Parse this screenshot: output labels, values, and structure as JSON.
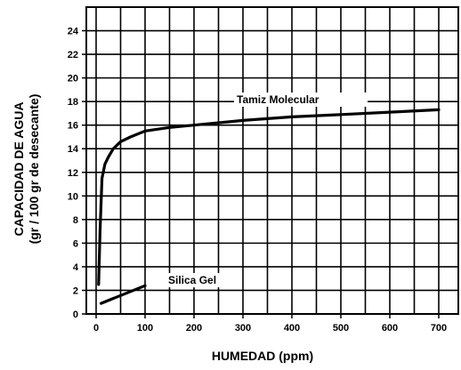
{
  "chart_data": {
    "type": "line",
    "title": "",
    "xlabel": "HUMEDAD   (ppm)",
    "ylabel_line1": "CAPACIDAD DE AGUA",
    "ylabel_line2": "(gr / 100 gr de desecante)",
    "xlim": [
      -20,
      740
    ],
    "ylim": [
      0,
      26
    ],
    "x_ticks": [
      0,
      100,
      200,
      300,
      400,
      500,
      600,
      700
    ],
    "y_ticks": [
      0,
      2,
      4,
      6,
      8,
      10,
      12,
      14,
      16,
      18,
      20,
      22,
      24
    ],
    "grid": true,
    "series": [
      {
        "name": "Tamiz Molecular",
        "x": [
          5,
          8,
          12,
          18,
          25,
          35,
          50,
          70,
          100,
          150,
          200,
          300,
          400,
          500,
          600,
          700
        ],
        "y": [
          2.5,
          7.0,
          11.5,
          12.7,
          13.3,
          14.0,
          14.6,
          15.0,
          15.5,
          15.8,
          16.0,
          16.4,
          16.7,
          16.9,
          17.1,
          17.3
        ]
      },
      {
        "name": "Silica Gel",
        "x": [
          10,
          100
        ],
        "y": [
          0.9,
          2.4
        ]
      }
    ]
  }
}
